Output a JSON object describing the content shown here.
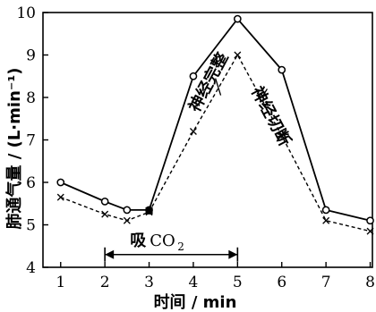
{
  "chart_data": {
    "type": "line",
    "xlabel": "时间 / min",
    "ylabel": "肺通气量 / (L·min⁻¹)",
    "xlim": [
      0.6,
      8.05
    ],
    "ylim": [
      4,
      10
    ],
    "x_ticks": [
      1,
      2,
      3,
      4,
      5,
      6,
      7,
      8
    ],
    "y_ticks": [
      4,
      5,
      6,
      7,
      8,
      9,
      10
    ],
    "series": [
      {
        "name": "神经完整",
        "style": "solid-circle",
        "color": "#000000",
        "x": [
          1,
          2,
          2.5,
          3,
          4,
          5,
          6,
          7,
          8
        ],
        "y": [
          6.0,
          5.55,
          5.35,
          5.35,
          8.5,
          9.85,
          8.65,
          5.35,
          5.1
        ]
      },
      {
        "name": "神经切断",
        "style": "dashed-cross",
        "color": "#000000",
        "x": [
          1,
          2,
          2.5,
          3,
          4,
          5,
          6,
          7,
          8
        ],
        "y": [
          5.65,
          5.25,
          5.1,
          5.3,
          7.2,
          9.0,
          7.1,
          5.1,
          4.85
        ]
      }
    ],
    "annotations": {
      "intact_label": "神经完整",
      "cut_label": "神经切断",
      "co2_prefix": "吸",
      "co2_main": "CO",
      "co2_sub": "2",
      "co2_range": [
        2,
        5
      ]
    }
  }
}
